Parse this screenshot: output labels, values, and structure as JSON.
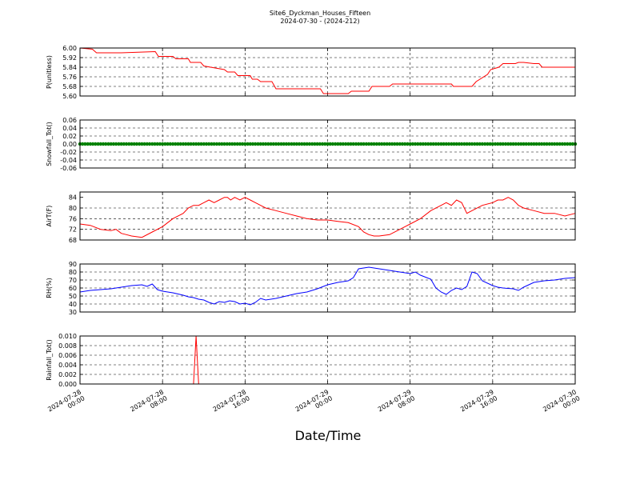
{
  "figure": {
    "title_line1": "Site6_Dyckman_Houses_Fifteen",
    "title_line2": "2024-07-30 - (2024-212)",
    "xlabel": "Date/Time"
  },
  "x_ticks": [
    {
      "pos": 0,
      "line1": "2024-07-28",
      "line2": "00:00"
    },
    {
      "pos": 8,
      "line1": "2024-07-28",
      "line2": "08:00"
    },
    {
      "pos": 16,
      "line1": "2024-07-28",
      "line2": "16:00"
    },
    {
      "pos": 24,
      "line1": "2024-07-29",
      "line2": "00:00"
    },
    {
      "pos": 32,
      "line1": "2024-07-29",
      "line2": "08:00"
    },
    {
      "pos": 40,
      "line1": "2024-07-29",
      "line2": "16:00"
    },
    {
      "pos": 48,
      "line1": "2024-07-30",
      "line2": "00:00"
    }
  ],
  "chart_data": [
    {
      "type": "line",
      "ylabel": "P(unitless)",
      "color": "#ff0000",
      "ylim": [
        5.6,
        6.0
      ],
      "yticks": [
        "5.60",
        "5.68",
        "5.76",
        "5.84",
        "5.92",
        "6.00"
      ],
      "x_hours": [
        0,
        1.2,
        1.6,
        4,
        7.3,
        7.6,
        9,
        9.3,
        10.5,
        10.7,
        11.7,
        12,
        14,
        14.3,
        15,
        15.3,
        16.5,
        16.7,
        17.2,
        17.5,
        18.6,
        19,
        23.3,
        23.6,
        26,
        26.3,
        28,
        28.3,
        30,
        30.3,
        36,
        36.2,
        38,
        38.4,
        39.5,
        39.8,
        40.6,
        41,
        42.2,
        42.5,
        43,
        44,
        44.5,
        44.8,
        48
      ],
      "values": [
        6.0,
        5.99,
        5.96,
        5.96,
        5.97,
        5.93,
        5.93,
        5.91,
        5.91,
        5.88,
        5.88,
        5.85,
        5.82,
        5.8,
        5.8,
        5.77,
        5.77,
        5.74,
        5.74,
        5.72,
        5.72,
        5.66,
        5.66,
        5.62,
        5.62,
        5.64,
        5.64,
        5.68,
        5.68,
        5.7,
        5.7,
        5.68,
        5.68,
        5.72,
        5.78,
        5.82,
        5.84,
        5.87,
        5.87,
        5.88,
        5.88,
        5.87,
        5.87,
        5.84,
        5.84
      ]
    },
    {
      "type": "scatter",
      "ylabel": "Snowfall_Tot()",
      "color": "#008000",
      "ylim": [
        -0.06,
        0.06
      ],
      "yticks": [
        "-0.06",
        "-0.04",
        "-0.02",
        "0.00",
        "0.02",
        "0.04",
        "0.06"
      ],
      "x_range": [
        0,
        48
      ],
      "constant_value": 0.0,
      "point_interval_hours": 0.25
    },
    {
      "type": "line",
      "ylabel": "AirT(F)",
      "color": "#ff0000",
      "ylim": [
        68,
        86
      ],
      "yticks": [
        "68",
        "72",
        "76",
        "80",
        "84"
      ],
      "x_hours": [
        0,
        1,
        2,
        3,
        3.5,
        4,
        4.5,
        5,
        6,
        7,
        8,
        8.5,
        9,
        10,
        10.5,
        11,
        11.5,
        12,
        12.5,
        13,
        13.5,
        14,
        14.3,
        14.6,
        15,
        15.5,
        16,
        16.5,
        17,
        17.5,
        18,
        19,
        20,
        21,
        22,
        23,
        24,
        25,
        26,
        27,
        27.5,
        28,
        28.5,
        29,
        30,
        31,
        32,
        33,
        34,
        35,
        35.5,
        36,
        36.5,
        37,
        37.5,
        38,
        39,
        40,
        40.5,
        41,
        41.5,
        42,
        42.5,
        43,
        44,
        45,
        46,
        47,
        48
      ],
      "values": [
        74,
        73.5,
        72,
        71.5,
        72,
        70.5,
        70,
        69.5,
        69,
        71,
        73,
        74.5,
        76,
        78,
        80,
        81,
        81,
        82,
        83,
        82,
        83,
        84,
        84,
        83,
        84,
        83,
        84,
        83,
        82,
        81,
        80,
        79,
        78,
        77,
        76,
        75.5,
        75.5,
        75,
        74.5,
        73,
        71,
        70,
        69.5,
        69.5,
        70,
        72,
        74,
        76,
        79,
        81,
        82,
        81,
        83,
        82,
        78,
        79,
        81,
        82,
        83,
        83,
        84,
        83,
        81,
        80,
        79,
        78,
        78,
        77,
        78
      ]
    },
    {
      "type": "line",
      "ylabel": "RH(%)",
      "color": "#0000ff",
      "ylim": [
        30,
        90
      ],
      "yticks": [
        "30",
        "40",
        "50",
        "60",
        "70",
        "80",
        "90"
      ],
      "x_hours": [
        0,
        1,
        2,
        3,
        4,
        5,
        6,
        6.5,
        7,
        7.5,
        8,
        9,
        10,
        10.5,
        11,
        11.5,
        12,
        12.5,
        13,
        13.5,
        14,
        14.5,
        15,
        15.5,
        16,
        16.5,
        17,
        17.5,
        18,
        19,
        20,
        21,
        22,
        23,
        24,
        25,
        26,
        26.5,
        27,
        28,
        29,
        30,
        31,
        32,
        32.5,
        33,
        34,
        34.5,
        35,
        35.5,
        36,
        36.5,
        37,
        37.5,
        38,
        38.5,
        39,
        40,
        40.5,
        41,
        42,
        42.5,
        43,
        44,
        45,
        46,
        47,
        48
      ],
      "values": [
        55,
        57,
        58,
        59,
        61,
        63,
        64,
        62,
        65,
        58,
        56,
        54,
        51,
        49,
        48,
        46,
        45,
        42,
        40,
        43,
        42,
        44,
        43,
        40,
        41,
        39,
        42,
        47,
        45,
        47,
        50,
        53,
        55,
        59,
        64,
        67,
        69,
        73,
        84,
        86,
        84,
        82,
        80,
        78,
        80,
        76,
        71,
        60,
        55,
        52,
        57,
        60,
        58,
        62,
        80,
        78,
        69,
        63,
        61,
        60,
        59,
        57,
        61,
        67,
        69,
        70,
        72,
        73
      ]
    },
    {
      "type": "line",
      "ylabel": "Rainfall_Tot()",
      "color": "#ff0000",
      "ylim": [
        0.0,
        0.01
      ],
      "yticks": [
        "0.000",
        "0.002",
        "0.004",
        "0.006",
        "0.008",
        "0.010"
      ],
      "x_hours": [
        0,
        11,
        11.25,
        11.5,
        48
      ],
      "values": [
        0,
        0,
        0.01,
        0,
        0
      ]
    }
  ]
}
